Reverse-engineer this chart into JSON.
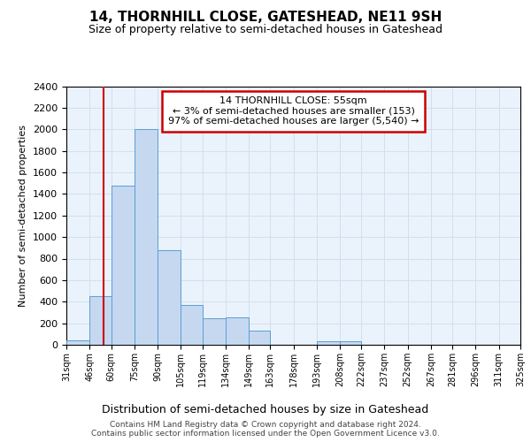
{
  "title": "14, THORNHILL CLOSE, GATESHEAD, NE11 9SH",
  "subtitle": "Size of property relative to semi-detached houses in Gateshead",
  "xlabel": "Distribution of semi-detached houses by size in Gateshead",
  "ylabel": "Number of semi-detached properties",
  "annotation_title": "14 THORNHILL CLOSE: 55sqm",
  "annotation_line1": "← 3% of semi-detached houses are smaller (153)",
  "annotation_line2": "97% of semi-detached houses are larger (5,540) →",
  "footer1": "Contains HM Land Registry data © Crown copyright and database right 2024.",
  "footer2": "Contains public sector information licensed under the Open Government Licence v3.0.",
  "bin_edges": [
    31,
    46,
    60,
    75,
    90,
    105,
    119,
    134,
    149,
    163,
    178,
    193,
    208,
    222,
    237,
    252,
    267,
    281,
    296,
    311,
    325
  ],
  "bar_values": [
    45,
    450,
    1480,
    2000,
    880,
    370,
    250,
    255,
    130,
    0,
    0,
    35,
    30,
    0,
    0,
    0,
    0,
    0,
    0,
    0
  ],
  "property_line_x": 55,
  "bar_color": "#c5d8f0",
  "bar_edge_color": "#5a9fd4",
  "grid_color": "#d0e0f0",
  "bg_color": "#eaf2fb",
  "vline_color": "#cc0000",
  "annotation_box_edgecolor": "#cc0000",
  "ylim": [
    0,
    2400
  ],
  "yticks": [
    0,
    200,
    400,
    600,
    800,
    1000,
    1200,
    1400,
    1600,
    1800,
    2000,
    2200,
    2400
  ],
  "title_fontsize": 11,
  "subtitle_fontsize": 9,
  "ylabel_fontsize": 8,
  "xlabel_fontsize": 9,
  "ytick_fontsize": 8,
  "xtick_fontsize": 7,
  "annotation_fontsize": 8,
  "footer_fontsize": 6.5
}
